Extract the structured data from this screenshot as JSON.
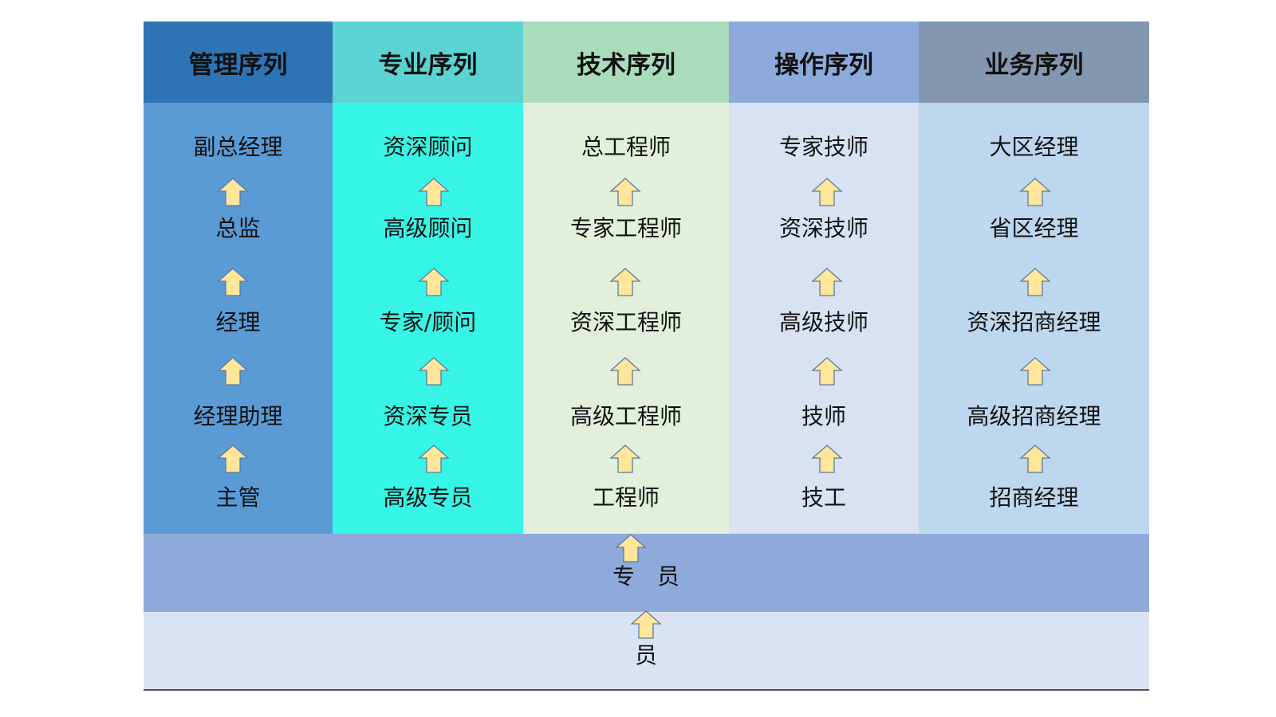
{
  "colors": {
    "arrow_fill": "#ffe699",
    "arrow_stroke": "#5a7d9f"
  },
  "columns": [
    {
      "title": "管理序列",
      "header_color": "#2e74b5",
      "body_color": "#5b9bd5",
      "levels": [
        "副总经理",
        "总监",
        "经理",
        "经理助理",
        "主管"
      ]
    },
    {
      "title": "专业序列",
      "header_color": "#5bd3d3",
      "body_color": "#37f5e6",
      "levels": [
        "资深顾问",
        "高级顾问",
        "专家/顾问",
        "资深专员",
        "高级专员"
      ]
    },
    {
      "title": "技术序列",
      "header_color": "#a9dbbd",
      "body_color": "#e2efda",
      "levels": [
        "总工程师",
        "专家工程师",
        "资深工程师",
        "高级工程师",
        "工程师"
      ]
    },
    {
      "title": "操作序列",
      "header_color": "#8eaadc",
      "body_color": "#d9e2f3",
      "levels": [
        "专家技师",
        "资深技师",
        "高级技师",
        "技师",
        "技工"
      ]
    },
    {
      "title": "业务序列",
      "header_color": "#8497b0",
      "body_color": "#bdd7ee",
      "levels": [
        "大区经理",
        "省区经理",
        "资深招商经理",
        "高级招商经理",
        "招商经理"
      ]
    }
  ],
  "band": {
    "label": "专　员",
    "color": "#8eaadb"
  },
  "base": {
    "label": "员",
    "color": "#dae3f3"
  }
}
